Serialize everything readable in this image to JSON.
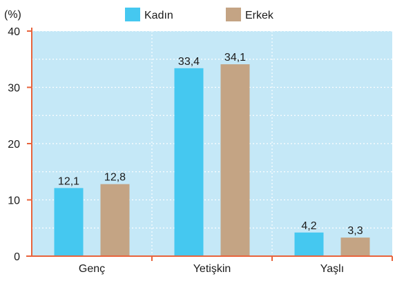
{
  "chart_data": {
    "type": "bar",
    "title": "",
    "xlabel": "",
    "ylabel": "(%)",
    "ylim": [
      0,
      40
    ],
    "yticks": [
      "0",
      "10",
      "20",
      "30",
      "40"
    ],
    "categories": [
      "Genç",
      "Yetişkin",
      "Yaşlı"
    ],
    "series": [
      {
        "name": "Kadın",
        "color": "#45c8f0",
        "values": [
          12.1,
          33.4,
          4.2
        ],
        "labels": [
          "12,1",
          "33,4",
          "4,2"
        ]
      },
      {
        "name": "Erkek",
        "color": "#c4a484",
        "values": [
          12.8,
          34.1,
          3.3
        ],
        "labels": [
          "12,8",
          "34,1",
          "3,3"
        ]
      }
    ],
    "grid": true,
    "legend": "top",
    "colors": {
      "plot_background": "#c5e8f7",
      "axis": "#e8623a",
      "grid": "#ffffff"
    }
  }
}
